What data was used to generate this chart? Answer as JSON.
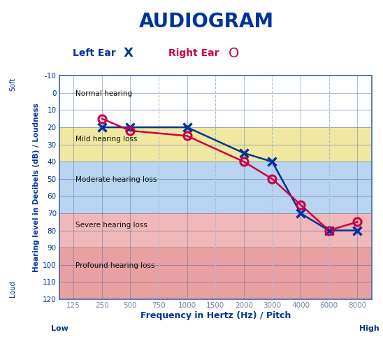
{
  "title": "AUDIOGRAM",
  "title_color": "#003399",
  "title_fontsize": 20,
  "legend_left_label": "Left Ear",
  "legend_right_label": "Right Ear",
  "legend_left_color": "#003399",
  "legend_right_color": "#cc0044",
  "xlabel": "Frequency in Hertz (Hz) / Pitch",
  "ylabel": "Hearing level in Decibels (dB) / Loudness",
  "xlabel_color": "#003399",
  "ylabel_color": "#003399",
  "soft_label": "Soft",
  "loud_label": "Loud",
  "low_label": "Low",
  "high_label": "High",
  "axis_label_color": "#003399",
  "freq_ticks": [
    125,
    250,
    500,
    750,
    1000,
    1500,
    2000,
    3000,
    4000,
    6000,
    8000
  ],
  "db_ticks": [
    -10,
    0,
    10,
    20,
    30,
    40,
    50,
    60,
    70,
    80,
    90,
    100,
    110,
    120
  ],
  "ylim": [
    -10,
    120
  ],
  "left_ear_freqs": [
    250,
    500,
    1000,
    2000,
    3000,
    4000,
    6000,
    8000
  ],
  "left_ear_db": [
    20,
    20,
    20,
    35,
    40,
    70,
    80,
    80
  ],
  "right_ear_freqs": [
    250,
    500,
    1000,
    2000,
    3000,
    4000,
    6000,
    8000
  ],
  "right_ear_db": [
    15,
    22,
    25,
    40,
    50,
    65,
    80,
    75
  ],
  "left_ear_color": "#003399",
  "right_ear_color": "#cc0044",
  "band_ranges": [
    {
      "label": "Normal hearing",
      "ymin": -10,
      "ymax": 20,
      "color": "#ffffff"
    },
    {
      "label": "Mild hearing loss",
      "ymin": 20,
      "ymax": 40,
      "color": "#f0e8a0"
    },
    {
      "label": "Moderate hearing loss",
      "ymin": 40,
      "ymax": 70,
      "color": "#b8d4f0"
    },
    {
      "label": "Severe hearing loss",
      "ymin": 70,
      "ymax": 90,
      "color": "#f0b8b8"
    },
    {
      "label": "Profound hearing loss",
      "ymin": 90,
      "ymax": 120,
      "color": "#e8a0a0"
    }
  ],
  "grid_major_color": "#4466aa",
  "grid_dashed_color": "#aabbdd",
  "dashed_freqs": [
    750,
    1500,
    3000,
    6000
  ],
  "bg_color": "#ffffff"
}
